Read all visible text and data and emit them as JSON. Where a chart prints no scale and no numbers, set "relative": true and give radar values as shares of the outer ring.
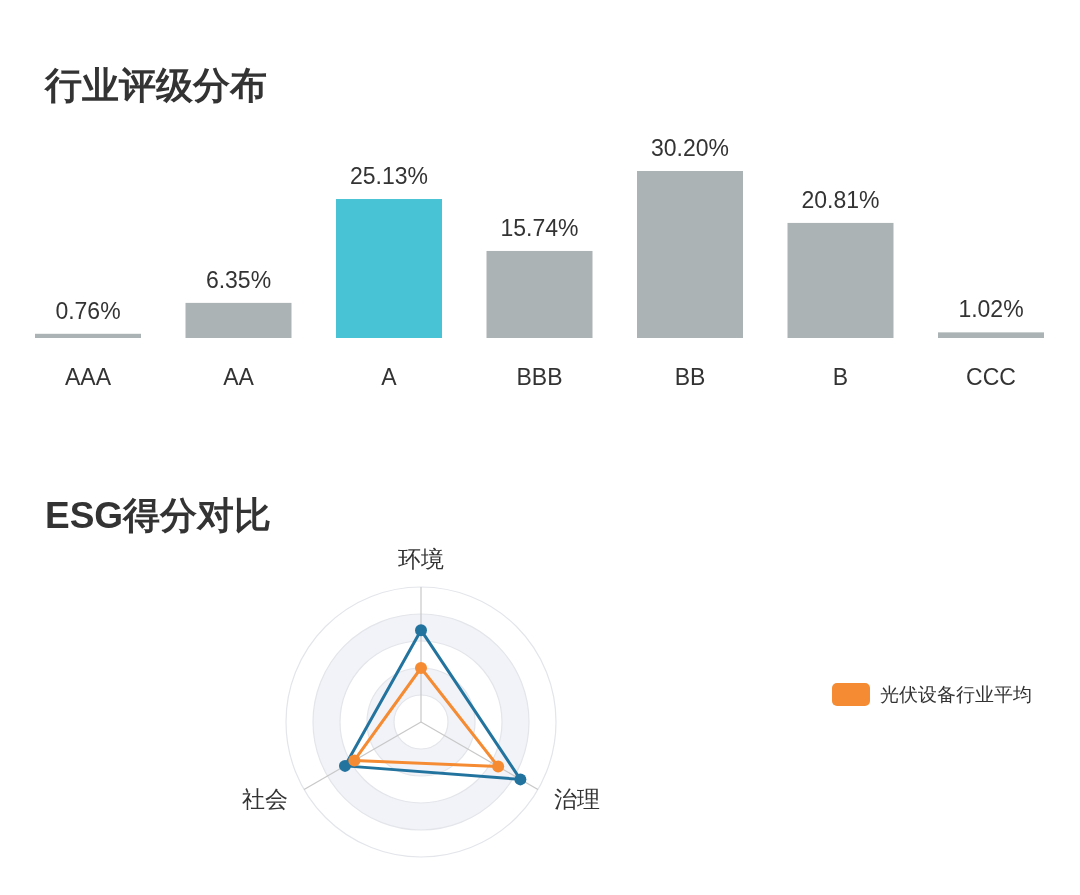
{
  "chart_data": [
    {
      "type": "bar",
      "title": "行业评级分布",
      "categories": [
        "AAA",
        "AA",
        "A",
        "BBB",
        "BB",
        "B",
        "CCC"
      ],
      "values": [
        0.76,
        6.35,
        25.13,
        15.74,
        30.2,
        20.81,
        1.02
      ],
      "colors": [
        "#abb3b4",
        "#abb3b4",
        "#48c2d5",
        "#abb3b4",
        "#abb3b4",
        "#abb3b4",
        "#abb3b4"
      ],
      "value_labels": [
        "0.76%",
        "6.35%",
        "25.13%",
        "15.74%",
        "30.20%",
        "20.81%",
        "1.02%"
      ]
    },
    {
      "type": "radar",
      "title": "ESG得分对比",
      "categories": [
        "环境",
        "治理",
        "社会"
      ],
      "relative": true,
      "grid": true,
      "marker": "circle",
      "legend": "right",
      "series": [
        {
          "color": "#23739f",
          "values": [
            0.68,
            0.85,
            0.65
          ]
        },
        {
          "name": "光伏设备行业平均",
          "color": "#f58b32",
          "values": [
            0.4,
            0.66,
            0.57
          ]
        }
      ]
    }
  ]
}
